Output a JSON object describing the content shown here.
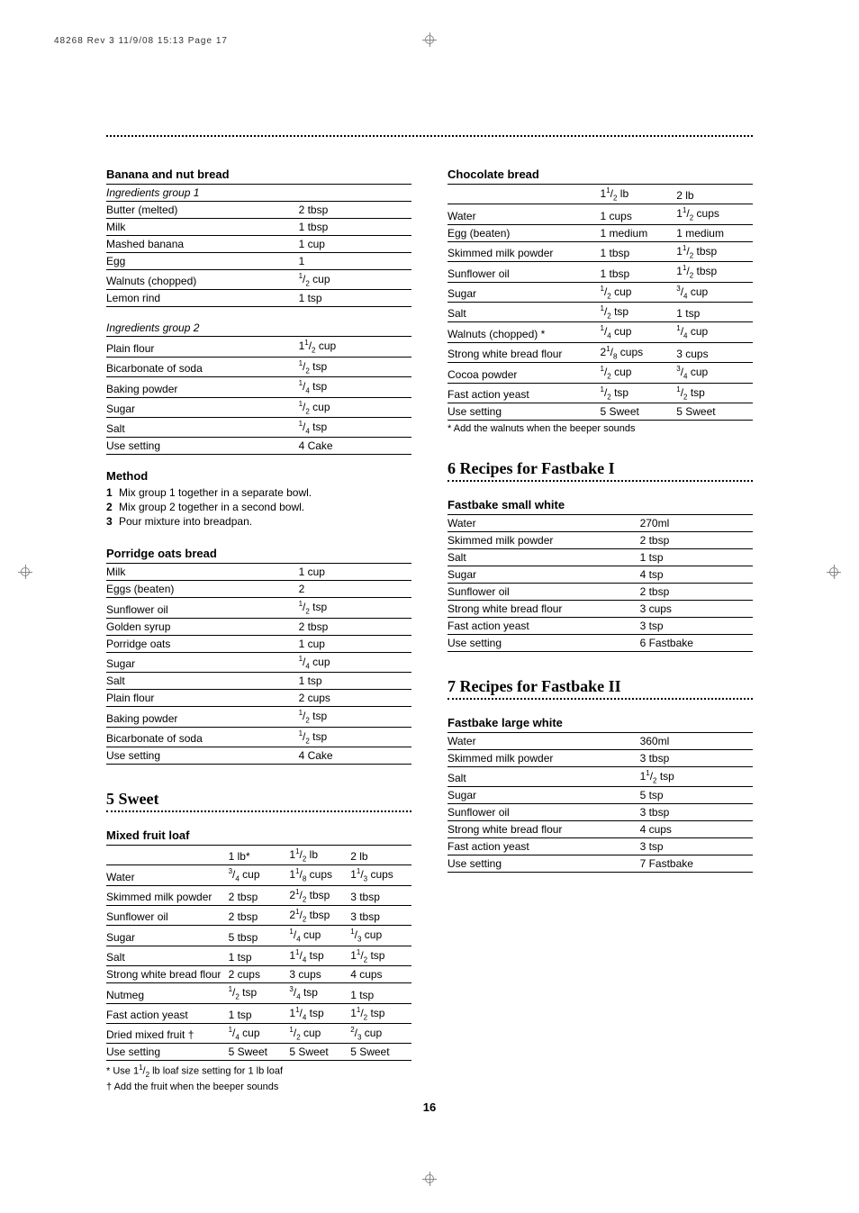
{
  "header_line": "48268 Rev 3  11/9/08  15:13  Page 17",
  "page_number": "16",
  "left": {
    "recipe1": {
      "title": "Banana and nut bread",
      "group1_label": "Ingredients group 1",
      "group1_rows": [
        [
          "Butter (melted)",
          "2 tbsp"
        ],
        [
          "Milk",
          "1 tbsp"
        ],
        [
          "Mashed banana",
          "1 cup"
        ],
        [
          "Egg",
          "1"
        ],
        [
          "Walnuts (chopped)",
          "{1/2} cup"
        ],
        [
          "Lemon rind",
          "1 tsp"
        ]
      ],
      "group2_label": "Ingredients group 2",
      "group2_rows": [
        [
          "Plain flour",
          "1{1/2} cup"
        ],
        [
          "Bicarbonate of soda",
          "{1/2} tsp"
        ],
        [
          "Baking powder",
          "{1/4} tsp"
        ],
        [
          "Sugar",
          "{1/2} cup"
        ],
        [
          "Salt",
          "{1/4} tsp"
        ],
        [
          "Use setting",
          "4 Cake"
        ]
      ]
    },
    "method": {
      "title": "Method",
      "steps": [
        "Mix group 1 together in a separate bowl.",
        "Mix group 2 together in a second bowl.",
        "Pour mixture into breadpan."
      ]
    },
    "recipe2": {
      "title": "Porridge oats bread",
      "rows": [
        [
          "Milk",
          "1 cup"
        ],
        [
          "Eggs (beaten)",
          "2"
        ],
        [
          "Sunflower oil",
          "{1/2} tsp"
        ],
        [
          "Golden syrup",
          "2 tbsp"
        ],
        [
          "Porridge oats",
          "1 cup"
        ],
        [
          "Sugar",
          "{1/4} cup"
        ],
        [
          "Salt",
          "1 tsp"
        ],
        [
          "Plain flour",
          "2 cups"
        ],
        [
          "Baking powder",
          "{1/2} tsp"
        ],
        [
          "Bicarbonate of soda",
          "{1/2} tsp"
        ],
        [
          "Use setting",
          "4 Cake"
        ]
      ]
    },
    "section5": "5 Sweet",
    "recipe3": {
      "title": "Mixed fruit loaf",
      "headers": [
        "",
        "1 lb*",
        "1{1/2} lb",
        "2 lb"
      ],
      "rows": [
        [
          "Water",
          "{3/4} cup",
          "1{1/8} cups",
          "1{1/3} cups"
        ],
        [
          "Skimmed milk powder",
          "2 tbsp",
          "2{1/2} tbsp",
          "3 tbsp"
        ],
        [
          "Sunflower oil",
          "2 tbsp",
          "2{1/2} tbsp",
          "3 tbsp"
        ],
        [
          "Sugar",
          "5 tbsp",
          "{1/4} cup",
          "{1/3} cup"
        ],
        [
          "Salt",
          "1 tsp",
          "1{1/4} tsp",
          "1{1/2} tsp"
        ],
        [
          "Strong white bread flour",
          "2 cups",
          "3 cups",
          "4 cups"
        ],
        [
          "Nutmeg",
          "{1/2} tsp",
          "{3/4} tsp",
          "1 tsp"
        ],
        [
          "Fast action yeast",
          "1 tsp",
          "1{1/4} tsp",
          "1{1/2} tsp"
        ],
        [
          "Dried mixed fruit †",
          "{1/4} cup",
          "{1/2} cup",
          "{2/3} cup"
        ],
        [
          "Use setting",
          "5 Sweet",
          "5 Sweet",
          "5 Sweet"
        ]
      ],
      "footnote1": "* Use 1{1/2} lb loaf size setting for 1 lb loaf",
      "footnote2": "† Add the fruit when the beeper sounds"
    }
  },
  "right": {
    "recipe1": {
      "title": "Chocolate bread",
      "headers": [
        "",
        "1{1/2} lb",
        "2 lb"
      ],
      "rows": [
        [
          "Water",
          "1 cups",
          "1{1/2} cups"
        ],
        [
          "Egg (beaten)",
          "1 medium",
          "1 medium"
        ],
        [
          "Skimmed milk powder",
          "1 tbsp",
          "1{1/2} tbsp"
        ],
        [
          "Sunflower oil",
          "1 tbsp",
          "1{1/2} tbsp"
        ],
        [
          "Sugar",
          "{1/2} cup",
          "{3/4} cup"
        ],
        [
          "Salt",
          "{1/2} tsp",
          "1 tsp"
        ],
        [
          "Walnuts (chopped) *",
          "{1/4} cup",
          "{1/4} cup"
        ],
        [
          "Strong white bread flour",
          "2{1/8} cups",
          "3 cups"
        ],
        [
          "Cocoa powder",
          "{1/2} cup",
          "{3/4} cup"
        ],
        [
          "Fast action yeast",
          "{1/2} tsp",
          "{1/2} tsp"
        ],
        [
          "Use setting",
          "5 Sweet",
          "5 Sweet"
        ]
      ],
      "footnote": "* Add the walnuts when the beeper sounds"
    },
    "section6": "6 Recipes for Fastbake I",
    "recipe2": {
      "title": "Fastbake small white",
      "rows": [
        [
          "Water",
          "270ml"
        ],
        [
          "Skimmed milk powder",
          "2 tbsp"
        ],
        [
          "Salt",
          "1 tsp"
        ],
        [
          "Sugar",
          "4 tsp"
        ],
        [
          "Sunflower oil",
          "2 tbsp"
        ],
        [
          "Strong white bread flour",
          "3 cups"
        ],
        [
          "Fast action yeast",
          "3 tsp"
        ],
        [
          "Use setting",
          "6 Fastbake"
        ]
      ]
    },
    "section7": "7 Recipes for Fastbake II",
    "recipe3": {
      "title": "Fastbake large white",
      "rows": [
        [
          "Water",
          "360ml"
        ],
        [
          "Skimmed milk powder",
          "3 tbsp"
        ],
        [
          "Salt",
          "1{1/2} tsp"
        ],
        [
          "Sugar",
          "5 tsp"
        ],
        [
          "Sunflower oil",
          "3 tbsp"
        ],
        [
          "Strong white bread flour",
          "4 cups"
        ],
        [
          "Fast action yeast",
          "3 tsp"
        ],
        [
          "Use setting",
          "7 Fastbake"
        ]
      ]
    }
  },
  "columns": {
    "two_col": {
      "name_pct": 63,
      "amt_pct": 37
    },
    "three_col": {
      "name_pct": 50,
      "amt_pct": 25
    },
    "four_col": {
      "name_pct": 40,
      "amt_pct": 20
    }
  }
}
